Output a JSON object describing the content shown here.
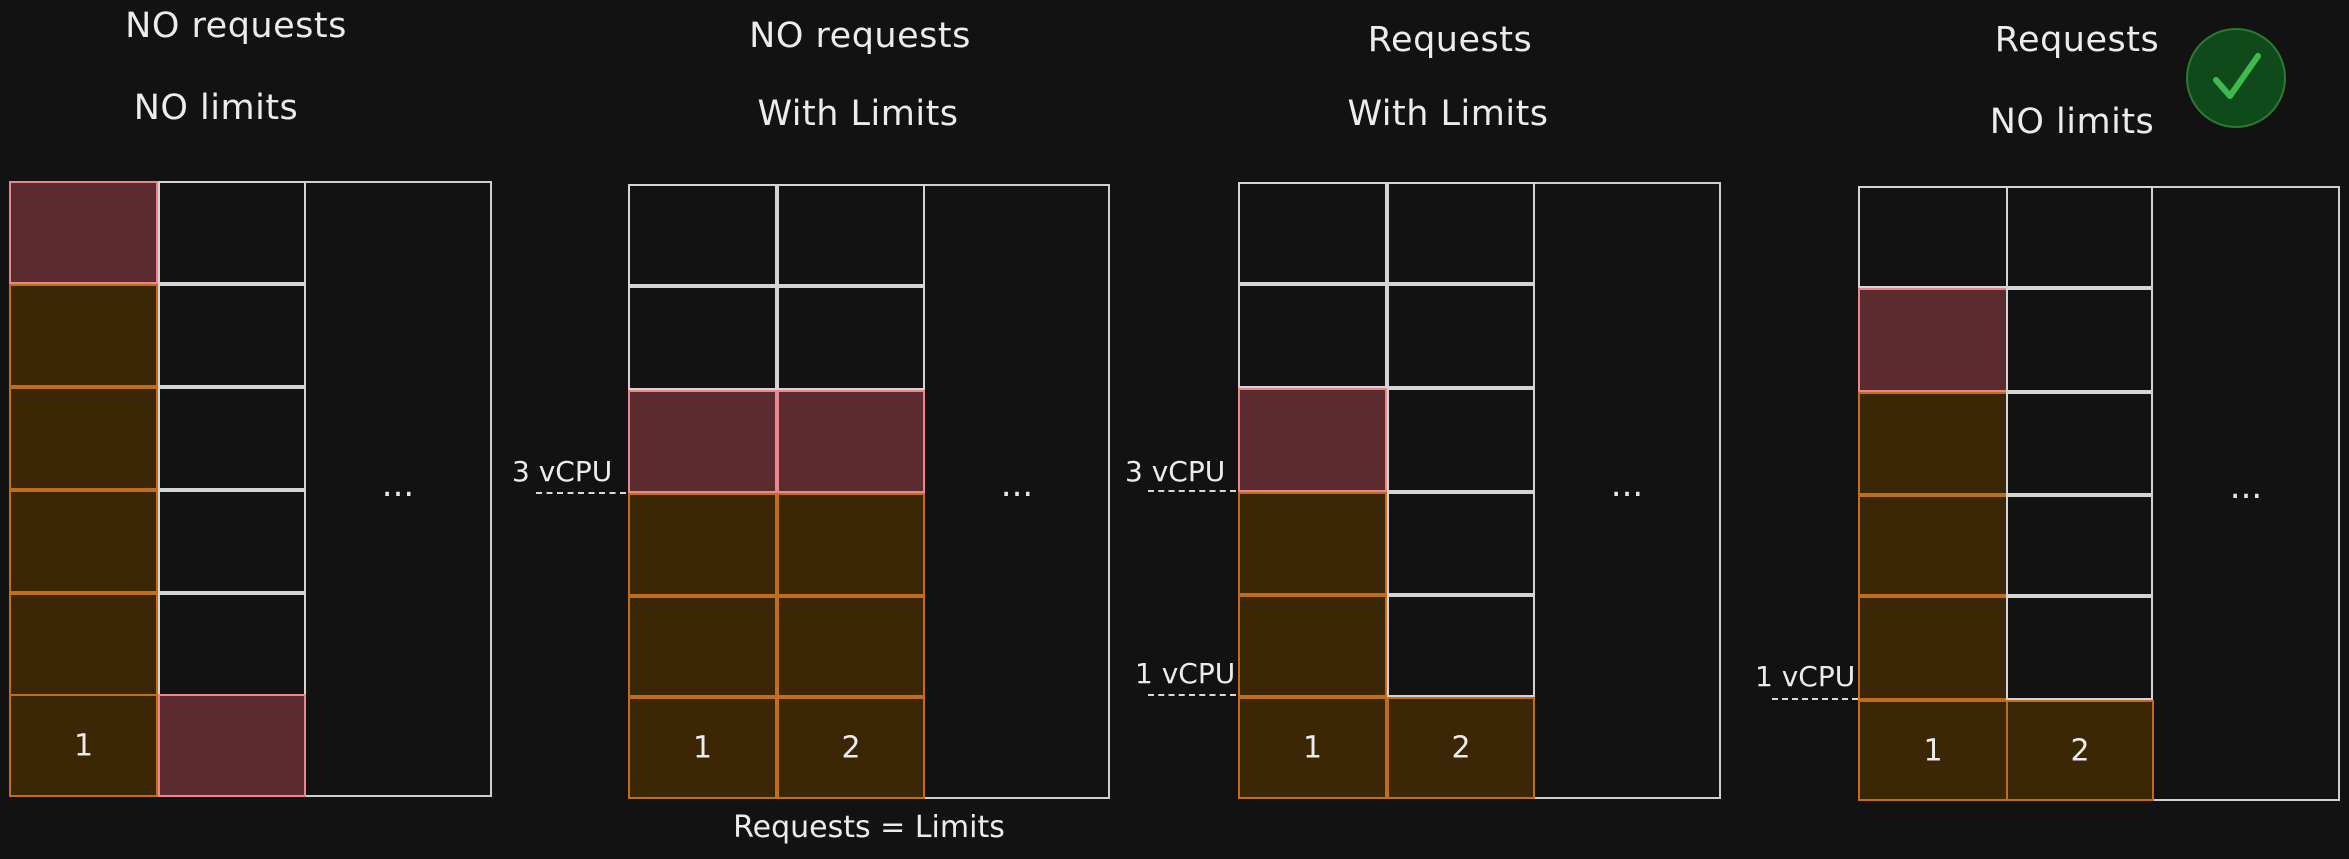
{
  "panels": [
    {
      "title_line1": "NO requests",
      "title_line2": "NO limits",
      "ellipsis": "...",
      "cell_labels": [
        "1",
        ""
      ],
      "vcpu_upper": "",
      "vcpu_lower": ""
    },
    {
      "title_line1": "NO requests",
      "title_line2": "With Limits",
      "ellipsis": "...",
      "cell_labels": [
        "1",
        "2"
      ],
      "vcpu_upper": "3 vCPU",
      "vcpu_lower": "",
      "footnote": "Requests = Limits"
    },
    {
      "title_line1": "Requests",
      "title_line2": "With Limits",
      "ellipsis": "...",
      "cell_labels": [
        "1",
        "2"
      ],
      "vcpu_upper": "3 vCPU",
      "vcpu_lower": "1 vCPU"
    },
    {
      "title_line1": "Requests",
      "title_line2": "NO limits",
      "ellipsis": "...",
      "cell_labels": [
        "1",
        "2"
      ],
      "vcpu_upper": "",
      "vcpu_lower": "1 vCPU",
      "badge_icon": "checkmark-icon"
    }
  ],
  "colors": {
    "background": "#121212",
    "used": "#3b2606",
    "used_border": "#c06e1a",
    "throttled": "#5c2b2f",
    "throttled_border": "#e8888e",
    "badge": "#0e4a1a",
    "check": "#3fb950"
  }
}
